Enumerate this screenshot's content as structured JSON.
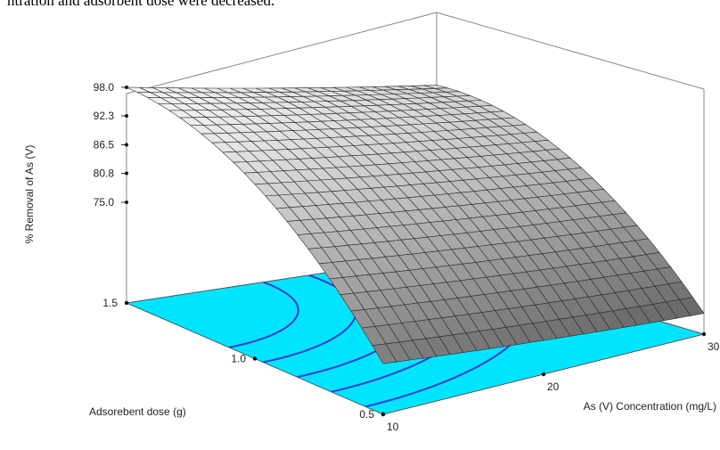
{
  "caption": "ntration and adsorbent dose were decreased.",
  "chart_data": {
    "type": "surface3d",
    "title": "",
    "zlabel": "% Removal of As (V)",
    "xlabel": "As (V) Concentration (mg/L)",
    "ylabel": "Adsorebent dose (g)",
    "z_ticks": [
      "98.0",
      "92.3",
      "86.5",
      "80.8",
      "75.0"
    ],
    "x_ticks": [
      "10",
      "20",
      "30"
    ],
    "y_ticks": [
      "0.5",
      "1.0",
      "1.5"
    ],
    "xlim": [
      10,
      30
    ],
    "ylim": [
      0.5,
      1.5
    ],
    "zlim": [
      75.0,
      98.0
    ],
    "contour_plane_color": "#00e5ff",
    "contour_line_color": "#3a3ad6",
    "surface_color": "#c8c8c8",
    "grid": false
  }
}
